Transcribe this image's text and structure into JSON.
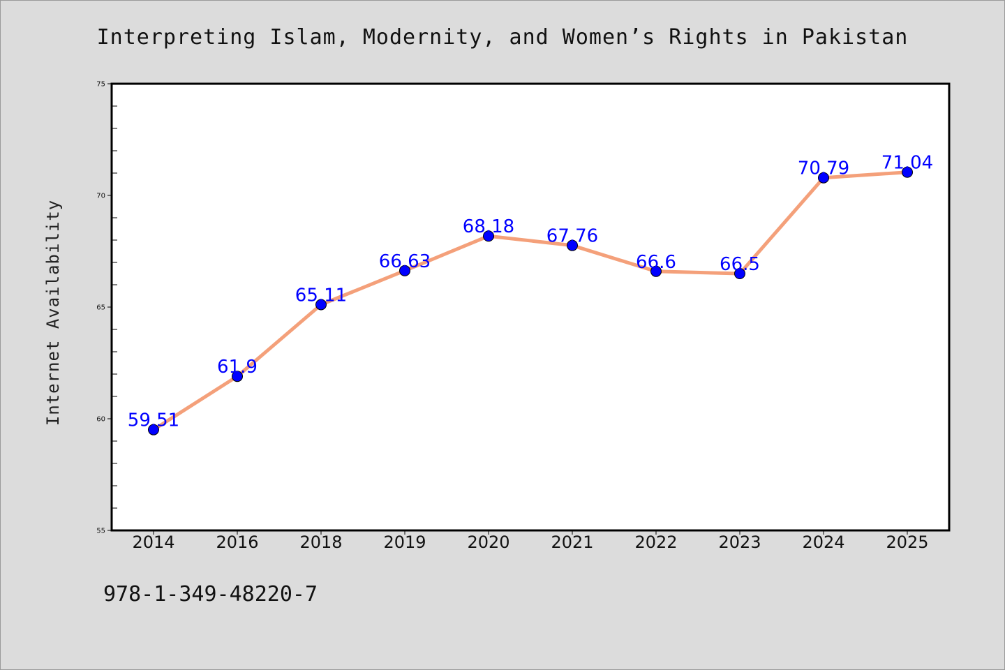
{
  "chart_data": {
    "type": "line",
    "title": "Interpreting Islam, Modernity, and Women’s Rights in Pakistan",
    "ylabel": "Internet Availability",
    "xlabel": "",
    "categories": [
      "2014",
      "2016",
      "2018",
      "2019",
      "2020",
      "2021",
      "2022",
      "2023",
      "2024",
      "2025"
    ],
    "values": [
      59.51,
      61.9,
      65.11,
      66.63,
      68.18,
      67.76,
      66.6,
      66.5,
      70.79,
      71.04
    ],
    "data_labels": [
      "59.51",
      "61.9",
      "65.11",
      "66.63",
      "68.18",
      "67.76",
      "66.6",
      "66.5",
      "70.79",
      "71.04"
    ],
    "ylim": [
      55,
      75
    ],
    "yticks": [
      "55",
      "60",
      "65",
      "70",
      "75"
    ],
    "grid": false,
    "legend": "none",
    "line_color": "#f4a07a",
    "marker_color": "#0000ff",
    "label_color": "#0000ff"
  },
  "footer": {
    "isbn": "978-1-349-48220-7"
  }
}
